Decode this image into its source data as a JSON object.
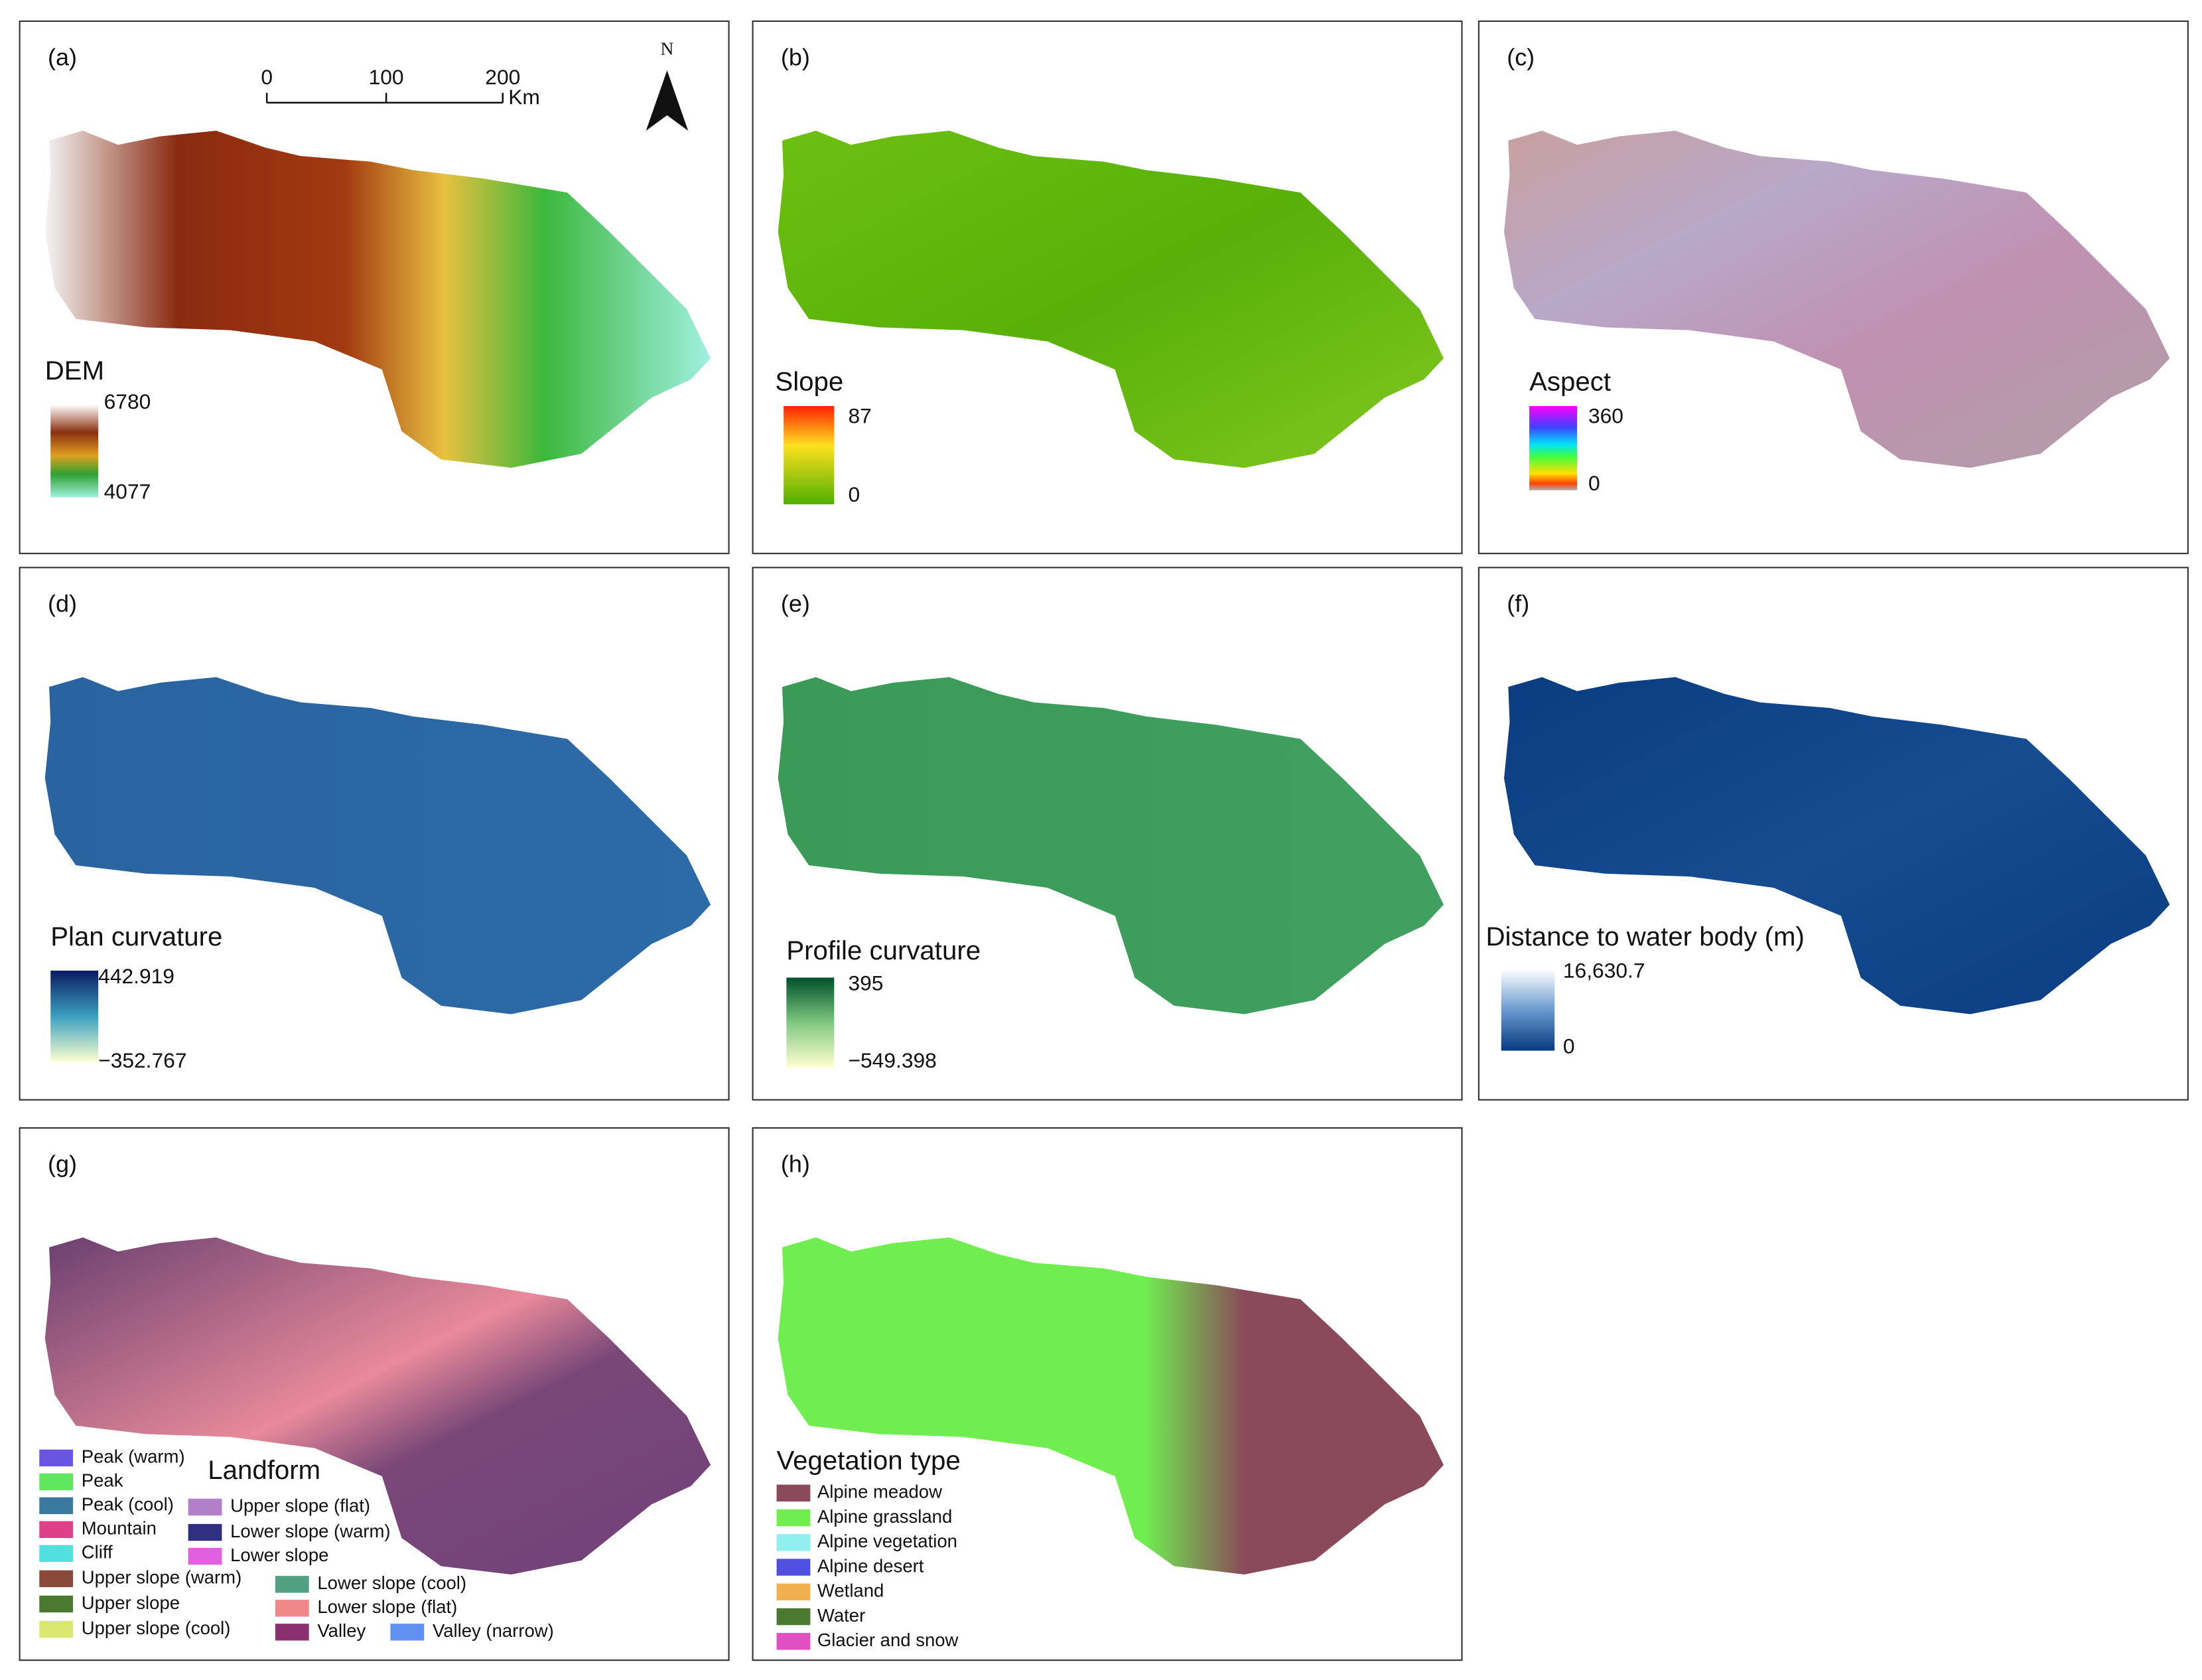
{
  "panels": [
    {
      "label": "(a)",
      "legend_title": "DEM",
      "legend_max": "6780",
      "legend_min": "4077"
    },
    {
      "label": "(b)",
      "legend_title": "Slope",
      "legend_max": "87",
      "legend_min": "0"
    },
    {
      "label": "(c)",
      "legend_title": "Aspect",
      "legend_max": "360",
      "legend_min": "0"
    },
    {
      "label": "(d)",
      "legend_title": "Plan curvature",
      "legend_max": "442.919",
      "legend_min": "−352.767"
    },
    {
      "label": "(e)",
      "legend_title": "Profile curvature",
      "legend_max": "395",
      "legend_min": "−549.398"
    },
    {
      "label": "(f)",
      "legend_title": "Distance to water body (m)",
      "legend_max": "16,630.7",
      "legend_min": "0"
    },
    {
      "label": "(g)"
    },
    {
      "label": "(h)"
    }
  ],
  "scale_bar": {
    "ticks": [
      "0",
      "100",
      "200"
    ],
    "unit": "Km"
  },
  "north_arrow": "N",
  "landform": {
    "title": "Landform",
    "classes": [
      {
        "name": "Peak (warm)",
        "color": "#6a55e0"
      },
      {
        "name": "Peak",
        "color": "#5ee85e"
      },
      {
        "name": "Peak (cool)",
        "color": "#3a7aa0"
      },
      {
        "name": "Mountain",
        "color": "#e0408a"
      },
      {
        "name": "Cliff",
        "color": "#50e0e0"
      },
      {
        "name": "Upper slope (warm)",
        "color": "#8a4a3a"
      },
      {
        "name": "Upper slope",
        "color": "#4a7a30"
      },
      {
        "name": "Upper slope (cool)",
        "color": "#d8e870"
      },
      {
        "name": "Upper slope (flat)",
        "color": "#b080c8"
      },
      {
        "name": "Lower slope (warm)",
        "color": "#303080"
      },
      {
        "name": "Lower slope",
        "color": "#e060e0"
      },
      {
        "name": "Lower slope (cool)",
        "color": "#50a080"
      },
      {
        "name": "Lower slope (flat)",
        "color": "#f08888"
      },
      {
        "name": "Valley",
        "color": "#8a3070"
      },
      {
        "name": "Valley (narrow)",
        "color": "#6090f0"
      }
    ]
  },
  "vegetation": {
    "title": "Vegetation type",
    "classes": [
      {
        "name": "Alpine meadow",
        "color": "#8a4a5a"
      },
      {
        "name": "Alpine grassland",
        "color": "#70ee50"
      },
      {
        "name": "Alpine vegetation",
        "color": "#90f0f0"
      },
      {
        "name": "Alpine desert",
        "color": "#5050e0"
      },
      {
        "name": "Wetland",
        "color": "#f0b050"
      },
      {
        "name": "Water",
        "color": "#4a7a30"
      },
      {
        "name": "Glacier and snow",
        "color": "#e050c0"
      }
    ]
  }
}
